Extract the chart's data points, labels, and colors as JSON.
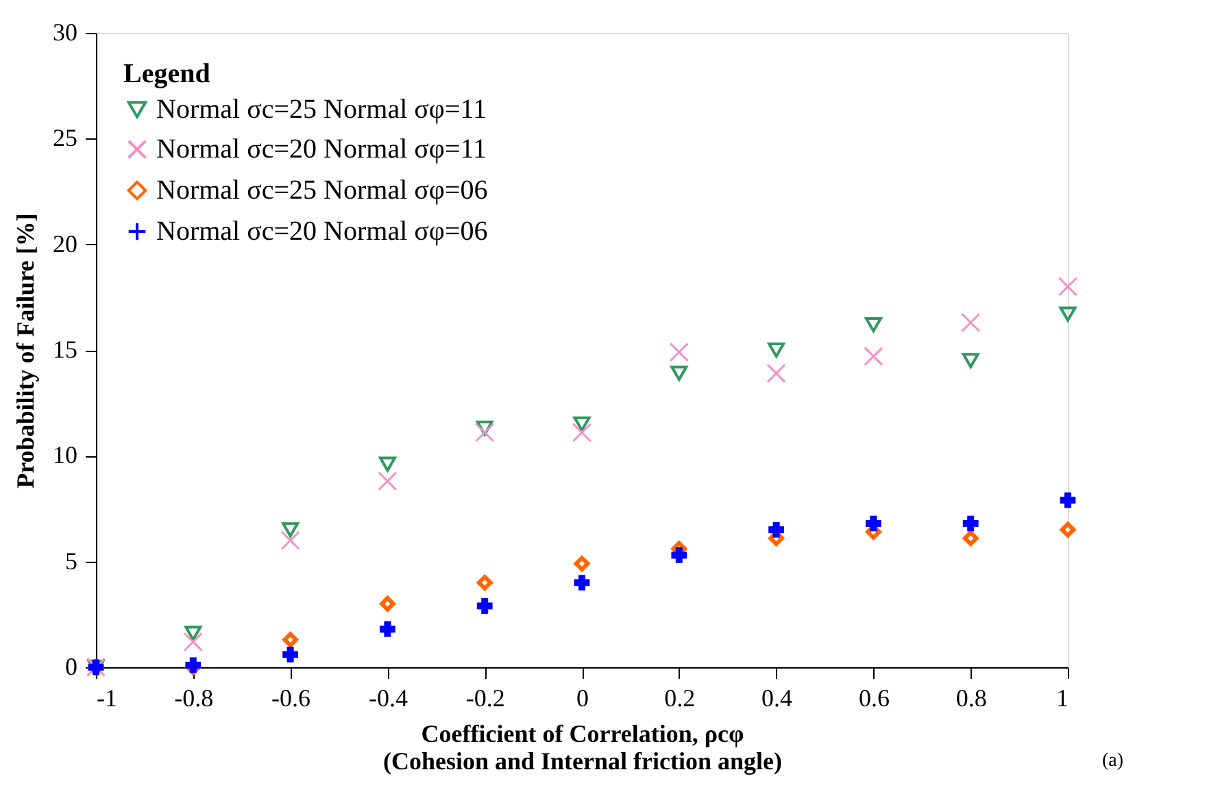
{
  "chart_data": {
    "type": "scatter",
    "xlabel": "Coefficient of Correlation, ρcφ\n(Cohesion and Internal friction angle)",
    "ylabel": "Probability of Failure [%]",
    "legend_title": "Legend",
    "legend": "top left",
    "grid": false,
    "annotations": [
      "(a)"
    ],
    "x": [
      -1,
      -0.8,
      -0.6,
      -0.4,
      -0.2,
      0,
      0.2,
      0.4,
      0.6,
      0.8,
      1
    ],
    "xlim": [
      -1,
      1
    ],
    "xticks": [
      -1,
      -0.8,
      -0.6,
      -0.4,
      -0.2,
      0,
      0.2,
      0.4,
      0.6,
      0.8,
      1
    ],
    "ylim": [
      0,
      30
    ],
    "yticks": [
      0,
      5,
      10,
      15,
      20,
      25,
      30
    ],
    "series": [
      {
        "name": "Normal σc=25 Normal σφ=11",
        "color": "#2e9a5e",
        "marker": "triangle",
        "values": [
          0,
          1.6,
          6.5,
          9.6,
          11.3,
          11.5,
          13.9,
          15.0,
          16.2,
          14.5,
          16.7
        ]
      },
      {
        "name": "Normal σc=20 Normal σφ=11",
        "color": "#f48fc8",
        "marker": "cross",
        "values": [
          0,
          1.2,
          6.0,
          8.8,
          11.1,
          11.1,
          14.9,
          13.9,
          14.7,
          16.3,
          18.0
        ]
      },
      {
        "name": "Normal σc=25 Normal σφ=06",
        "color": "#ff6600",
        "marker": "diamond",
        "values": [
          0,
          0,
          1.3,
          3.0,
          4.0,
          4.9,
          5.6,
          6.1,
          6.4,
          6.1,
          6.5
        ]
      },
      {
        "name": "Normal σc=20 Normal σφ=06",
        "color": "#0000ff",
        "marker": "plus",
        "values": [
          0,
          0.1,
          0.6,
          1.8,
          2.9,
          4.0,
          5.3,
          6.5,
          6.8,
          6.8,
          7.9
        ]
      }
    ]
  }
}
